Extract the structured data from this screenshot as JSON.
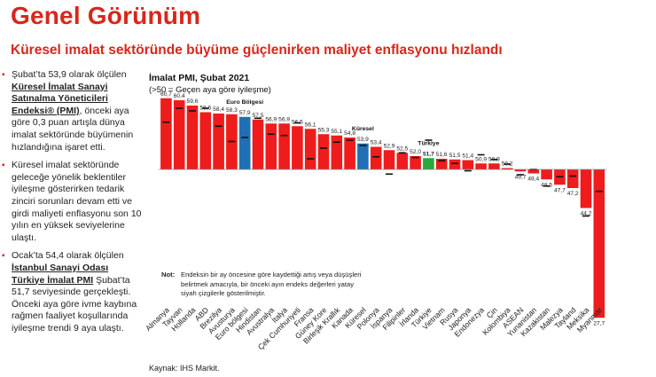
{
  "title": "Genel Görünüm",
  "subtitle": "Küresel imalat sektöründe büyüme güçlenirken maliyet enflasyonu hızlandı",
  "bullets": [
    {
      "parts": [
        {
          "t": "Şubat’ta 53,9 olarak ölçülen ",
          "s": ""
        },
        {
          "t": "Küresel İmalat Sanayi Satınalma Yöneticileri Endeksi® (PMI)",
          "s": "u"
        },
        {
          "t": ", önceki aya göre 0,3 puan artışla dünya imalat sektöründe büyümenin hızlandığına işaret etti.",
          "s": ""
        }
      ]
    },
    {
      "parts": [
        {
          "t": "Küresel imalat sektöründe geleceğe yönelik beklentiler iyileşme gösterirken tedarik zinciri sorunları devam etti ve girdi maliyeti enflasyonu son 10 yılın en yüksek seviyelerine ulaştı.",
          "s": ""
        }
      ]
    },
    {
      "parts": [
        {
          "t": "Ocak’ta 54,4 olarak ölçülen ",
          "s": ""
        },
        {
          "t": "İstanbul Sanayi Odası Türkiye İmalat PMI",
          "s": "u"
        },
        {
          "t": " Şubat’ta 51,7 seviyesinde gerçekleşti. Önceki aya göre ivme kaybına rağmen faaliyet koşullarında iyileşme trendi 9 aya ulaştı.",
          "s": ""
        }
      ]
    }
  ],
  "chart_data": {
    "type": "bar",
    "title": "İmalat PMI, Şubat 2021",
    "subtitle": "(>50 = Geçen aya göre iyileşme)",
    "baseline": 50,
    "categories": [
      "Almanya",
      "Tayvan",
      "Hollanda",
      "ABD",
      "Brezilya",
      "Avusturya",
      "Euro bölgesi",
      "Hindistan",
      "Avustralya",
      "İtalya",
      "Çek Cumhuriyeti",
      "Fransa",
      "Güney Kore",
      "Birleşik Krallık",
      "Kanada",
      "Küresel",
      "Polonya",
      "İspanya",
      "Filipinler",
      "İrlanda",
      "Türkiye",
      "Vietnam",
      "Rusya",
      "Japonya",
      "Endonezya",
      "Çin",
      "Kolombiya",
      "ASEAN",
      "Yunanistan",
      "Kazakistan",
      "Malezya",
      "Tayland",
      "Meksika",
      "Myanmar"
    ],
    "values": [
      60.7,
      60.4,
      59.6,
      58.6,
      58.4,
      58.3,
      57.9,
      57.5,
      56.9,
      56.9,
      56.5,
      56.1,
      55.3,
      55.1,
      54.8,
      53.9,
      53.4,
      52.9,
      52.5,
      52.0,
      51.7,
      51.6,
      51.5,
      51.4,
      50.9,
      50.9,
      50.2,
      49.7,
      49.4,
      48.5,
      47.7,
      47.2,
      44.2,
      27.7
    ],
    "value_labels": [
      "60,7",
      "60,4",
      "59,6",
      "58,6",
      "58,4",
      "58,3",
      "57,9",
      "57,5",
      "56,9",
      "56,9",
      "56,5",
      "56,1",
      "55,3",
      "55,1",
      "54,8",
      "53,9",
      "53,4",
      "52,9",
      "52,5",
      "52,0",
      "51,7",
      "51,6",
      "51,5",
      "51,4",
      "50,9",
      "50,9",
      "50,2",
      "49,7",
      "49,4",
      "48,5",
      "47,7",
      "47,2",
      "44,2",
      "27,7"
    ],
    "previous": [
      57.1,
      59.2,
      58.8,
      59.2,
      56.5,
      54.2,
      54.8,
      57.7,
      55.3,
      55.1,
      57.0,
      51.6,
      53.2,
      54.1,
      54.4,
      53.6,
      51.9,
      49.3,
      52.5,
      51.8,
      54.4,
      51.3,
      50.9,
      49.8,
      52.2,
      51.5,
      50.8,
      49.2,
      50.0,
      47.5,
      48.9,
      49.0,
      43.0,
      46.7
    ],
    "highlight": {
      "Euro bölgesi": "euro",
      "Küresel": "global",
      "Türkiye": "turkey"
    },
    "highlight_labels": {
      "Euro bölgesi": "Euro Bölgesi",
      "Küresel": "Küresel",
      "Türkiye": "Türkiye"
    },
    "colors": {
      "default": "#ee1c1c",
      "euro": "#1f6fb5",
      "global": "#1f6fb5",
      "turkey": "#29a83c",
      "marker": "#111111"
    },
    "ylim": [
      27,
      62
    ],
    "grid": false,
    "legend": "none"
  },
  "note": {
    "label": "Not:",
    "text": "Endeksin bir ay öncesine göre kaydettiği artış veya düşüşleri belirtmek amacıyla, bir önceki ayın endeks değerleri yatay siyah çizgilerle gösterilmiştir."
  },
  "source": "Kaynak: IHS Markit."
}
